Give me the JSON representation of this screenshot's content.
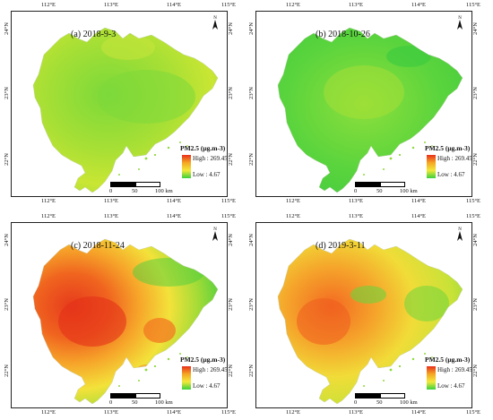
{
  "lon_ticks": [
    "112°E",
    "113°E",
    "114°E",
    "115°E"
  ],
  "lat_ticks": [
    "24°N",
    "23°N",
    "22°N"
  ],
  "north_label": "N",
  "legend": {
    "title": "PM2.5 (μg.m-3)",
    "high_label": "High : 269.45",
    "low_label": "Low : 4.67",
    "colors": {
      "high": "#e8301c",
      "mid_high": "#f5a623",
      "mid": "#f3e83a",
      "low": "#39d13c"
    }
  },
  "scale_bar": {
    "labels": [
      "0",
      "50",
      "100 km"
    ]
  },
  "panels": [
    {
      "id": "a",
      "title": "(a) 2018-9-3",
      "dominant": "yellow-green"
    },
    {
      "id": "b",
      "title": "(b) 2018-10-26",
      "dominant": "green"
    },
    {
      "id": "c",
      "title": "(c) 2018-11-24",
      "dominant": "red-west"
    },
    {
      "id": "d",
      "title": "(d) 2019-3-11",
      "dominant": "yellow-orange"
    }
  ]
}
